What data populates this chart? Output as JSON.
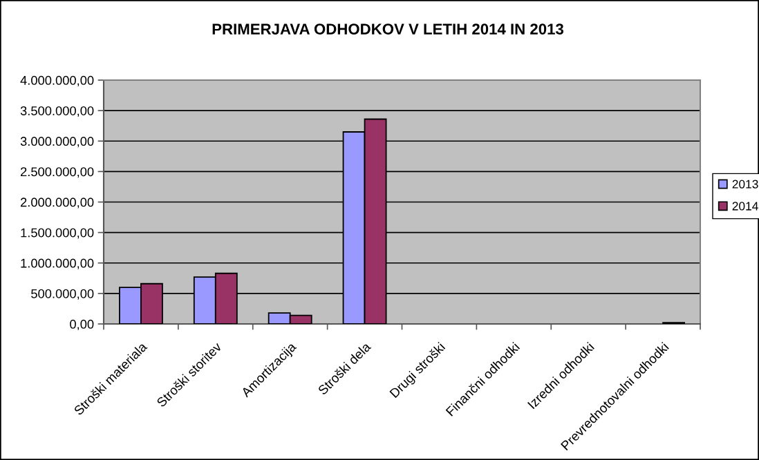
{
  "chart_data": {
    "type": "bar",
    "title": "PRIMERJAVA ODHODKOV V LETIH 2014 IN 2013",
    "categories": [
      "Stroški materiala",
      "Stroški storitev",
      "Amortizacija",
      "Stroški dela",
      "Drugi stroški",
      "Finančni odhodki",
      "Izredni odhodki",
      "Prevrednotovalni odhodki"
    ],
    "series": [
      {
        "name": "2013",
        "color": "#9999ff",
        "values": [
          600000,
          770000,
          180000,
          3150000,
          null,
          null,
          null,
          null
        ]
      },
      {
        "name": "2014",
        "color": "#993366",
        "values": [
          660000,
          830000,
          140000,
          3360000,
          null,
          null,
          null,
          20000
        ]
      }
    ],
    "ylim": [
      0,
      4000000
    ],
    "yticks": [
      {
        "value": 0,
        "label": "0,00"
      },
      {
        "value": 500000,
        "label": "500.000,00"
      },
      {
        "value": 1000000,
        "label": "1.000.000,00"
      },
      {
        "value": 1500000,
        "label": "1.500.000,00"
      },
      {
        "value": 2000000,
        "label": "2.000.000,00"
      },
      {
        "value": 2500000,
        "label": "2.500.000,00"
      },
      {
        "value": 3000000,
        "label": "3.000.000,00"
      },
      {
        "value": 3500000,
        "label": "3.500.000,00"
      },
      {
        "value": 4000000,
        "label": "4.000.000,00"
      }
    ],
    "grid": "y",
    "legend": "right"
  }
}
